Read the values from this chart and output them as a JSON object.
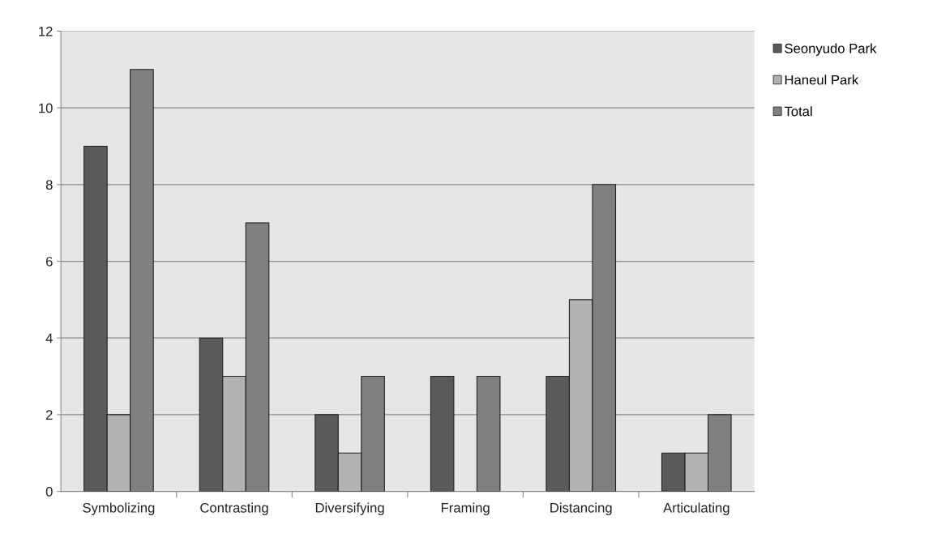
{
  "chart_data": {
    "type": "bar",
    "categories": [
      "Symbolizing",
      "Contrasting",
      "Diversifying",
      "Framing",
      "Distancing",
      "Articulating"
    ],
    "series": [
      {
        "name": "Seonyudo Park",
        "color": "#5a5a5a",
        "values": [
          9,
          4,
          2,
          3,
          3,
          1
        ]
      },
      {
        "name": "Haneul Park",
        "color": "#b2b2b2",
        "values": [
          2,
          3,
          1,
          0,
          5,
          1
        ]
      },
      {
        "name": "Total",
        "color": "#808080",
        "values": [
          11,
          7,
          3,
          3,
          8,
          2
        ]
      }
    ],
    "ylim": [
      0,
      12
    ],
    "yticks": [
      0,
      2,
      4,
      6,
      8,
      10,
      12
    ],
    "grid": "y",
    "legend": "top right"
  }
}
